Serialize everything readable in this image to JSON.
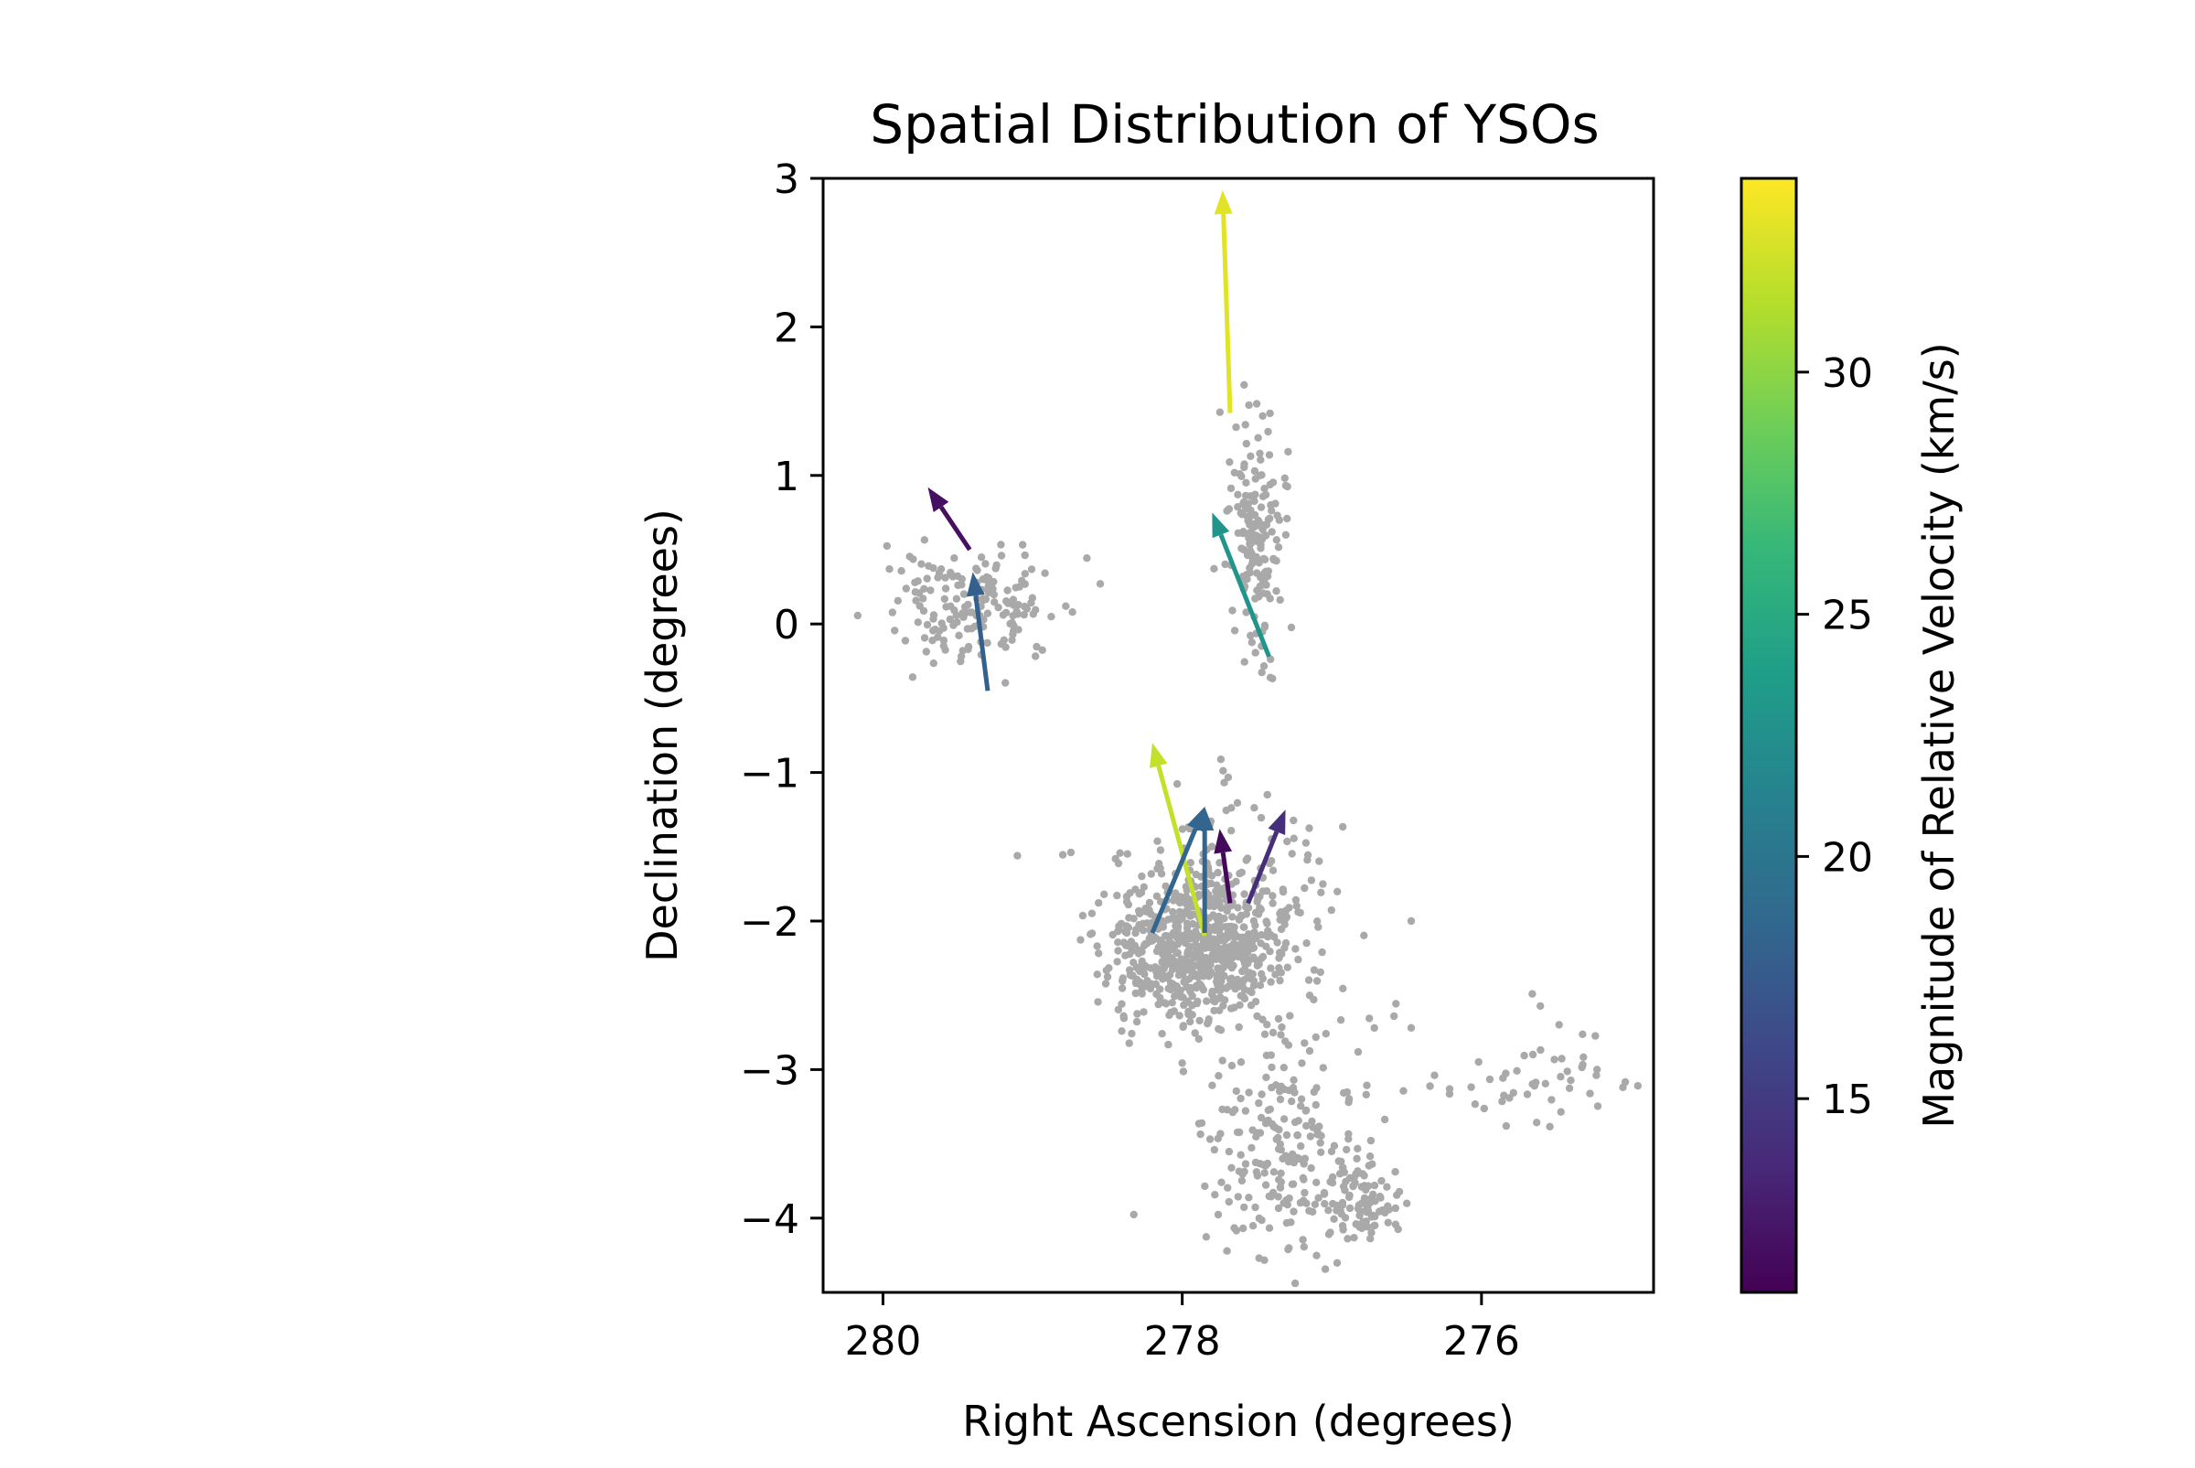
{
  "chart_data": {
    "type": "scatter",
    "title": "Spatial Distribution of YSOs",
    "xlabel": "Right Ascension (degrees)",
    "ylabel": "Declination (degrees)",
    "xlim": [
      280.4,
      274.85
    ],
    "ylim": [
      -4.5,
      3.0
    ],
    "x_inverted": true,
    "xticks": [
      280,
      278,
      276
    ],
    "yticks": [
      3,
      2,
      1,
      0,
      -1,
      -2,
      -3,
      -4
    ],
    "grid": false,
    "point_color": "#a9a9a9",
    "clusters": [
      {
        "ra": 279.4,
        "dec": 0.12,
        "sd_ra": 0.28,
        "sd_dec": 0.2,
        "n": 170
      },
      {
        "ra": 277.5,
        "dec": 0.6,
        "sd_ra": 0.09,
        "sd_dec": 0.4,
        "n": 170
      },
      {
        "ra": 277.9,
        "dec": -2.2,
        "sd_ra": 0.3,
        "sd_dec": 0.25,
        "n": 700
      },
      {
        "ra": 277.7,
        "dec": -1.7,
        "sd_ra": 0.4,
        "sd_dec": 0.3,
        "n": 120
      },
      {
        "ra": 277.3,
        "dec": -3.5,
        "sd_ra": 0.3,
        "sd_dec": 0.4,
        "n": 230
      },
      {
        "ra": 276.8,
        "dec": -3.9,
        "sd_ra": 0.12,
        "sd_dec": 0.15,
        "n": 80
      },
      {
        "ra": 275.8,
        "dec": -3.05,
        "sd_ra": 0.45,
        "sd_dec": 0.18,
        "n": 60
      }
    ],
    "vectors": [
      {
        "ra0": 279.42,
        "dec0": 0.5,
        "ra1": 279.7,
        "dec1": 0.92,
        "speed": 12.0
      },
      {
        "ra0": 279.3,
        "dec0": -0.45,
        "ra1": 279.4,
        "dec1": 0.35,
        "speed": 18.0
      },
      {
        "ra0": 277.68,
        "dec0": 1.42,
        "ra1": 277.73,
        "dec1": 2.92,
        "speed": 33.0
      },
      {
        "ra0": 277.42,
        "dec0": -0.22,
        "ra1": 277.8,
        "dec1": 0.75,
        "speed": 23.0
      },
      {
        "ra0": 277.85,
        "dec0": -2.1,
        "ra1": 278.2,
        "dec1": -0.8,
        "speed": 32.0
      },
      {
        "ra0": 278.2,
        "dec0": -2.08,
        "ra1": 277.85,
        "dec1": -1.23,
        "speed": 18.5
      },
      {
        "ra0": 277.85,
        "dec0": -2.08,
        "ra1": 277.85,
        "dec1": -1.23,
        "speed": 18.5
      },
      {
        "ra0": 277.68,
        "dec0": -1.88,
        "ra1": 277.75,
        "dec1": -1.38,
        "speed": 11.5
      },
      {
        "ra0": 277.56,
        "dec0": -1.88,
        "ra1": 277.31,
        "dec1": -1.25,
        "speed": 14.0
      }
    ],
    "colorbar": {
      "label": "Magnitude of Relative Velocity (km/s)",
      "min": 11.0,
      "max": 34.0,
      "ticks": [
        15,
        20,
        25,
        30
      ],
      "colormap": "viridis",
      "stops": [
        "#440154",
        "#482878",
        "#3e4989",
        "#31688e",
        "#26828e",
        "#1f9e89",
        "#35b779",
        "#6ece58",
        "#b5de2b",
        "#fde725"
      ]
    }
  }
}
